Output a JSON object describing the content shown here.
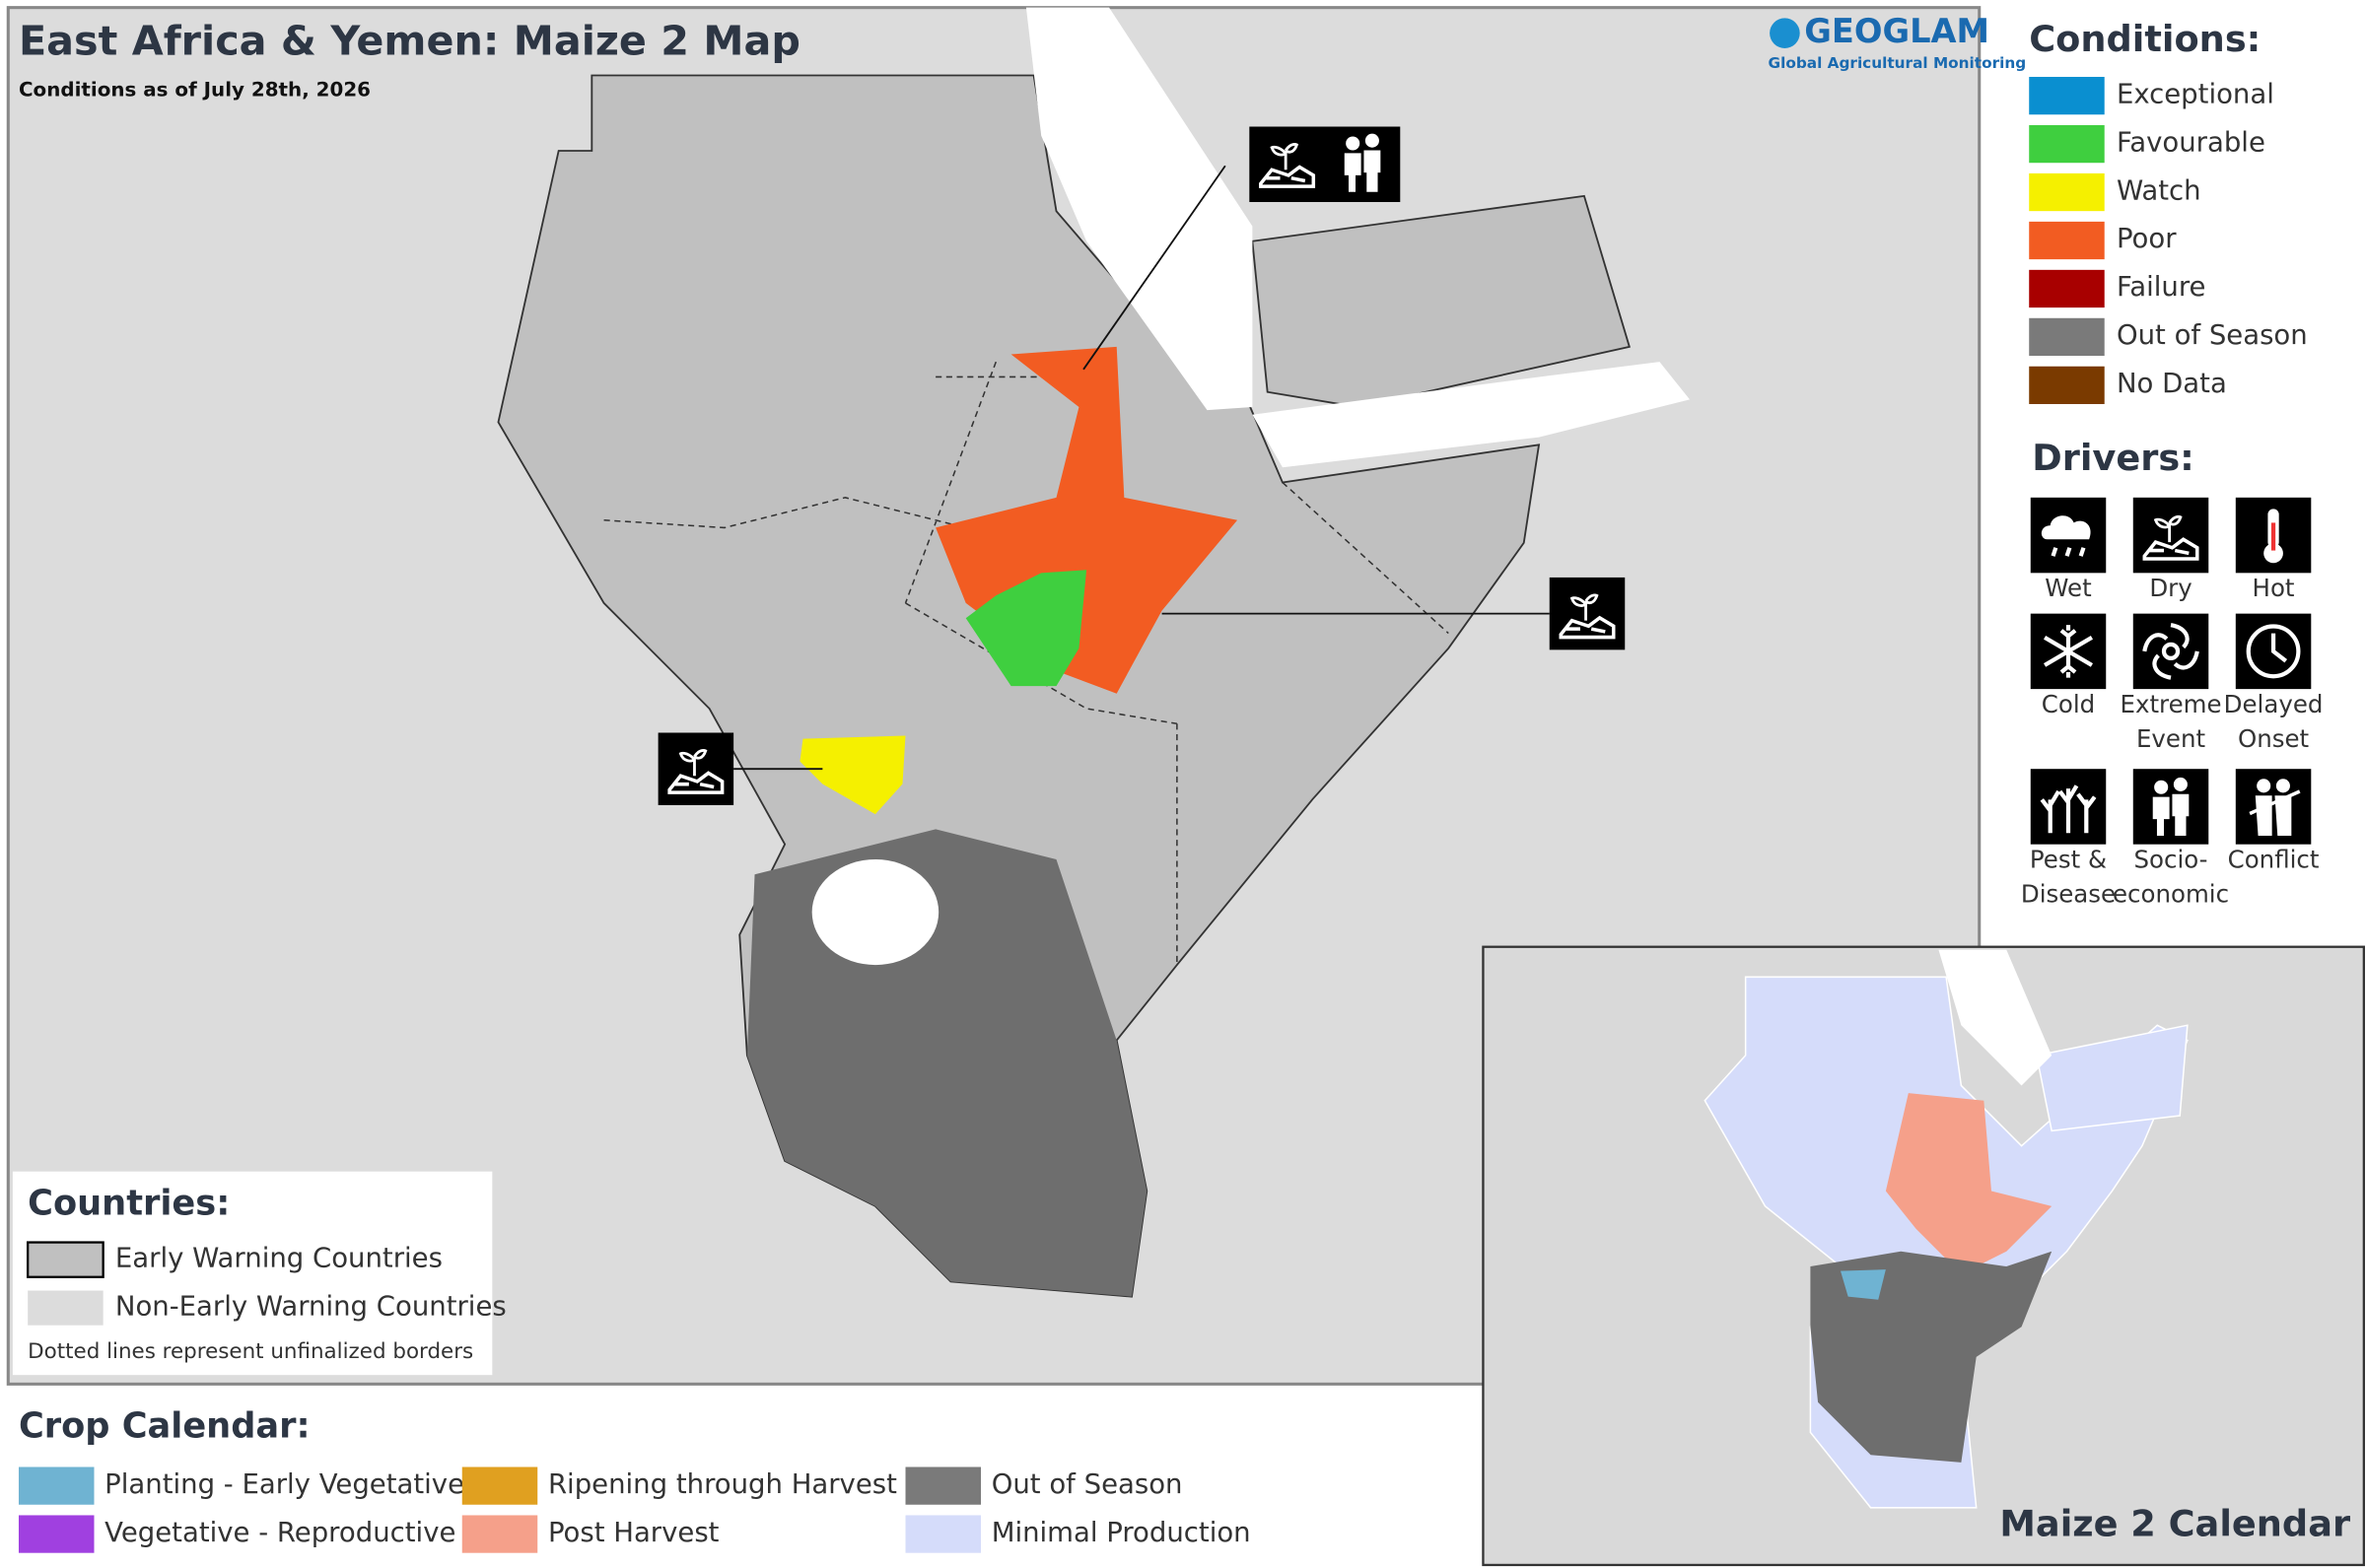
{
  "header": {
    "title": "East Africa & Yemen: Maize 2 Map",
    "subtitle": "Conditions as of July 28th, 2026"
  },
  "logo": {
    "name": "GEOGLAM",
    "tagline": "Global Agricultural Monitoring"
  },
  "conditions": {
    "title": "Conditions:",
    "items": [
      {
        "label": "Exceptional",
        "color": "#0a8fd0"
      },
      {
        "label": "Favourable",
        "color": "#3fcf3f"
      },
      {
        "label": "Watch",
        "color": "#f5f000"
      },
      {
        "label": "Poor",
        "color": "#f25c22"
      },
      {
        "label": "Failure",
        "color": "#a80000"
      },
      {
        "label": "Out of Season",
        "color": "#7a7a7a"
      },
      {
        "label": "No Data",
        "color": "#7a3a00"
      }
    ]
  },
  "drivers": {
    "title": "Drivers:",
    "items": [
      {
        "lines": [
          "Wet"
        ]
      },
      {
        "lines": [
          "Dry"
        ]
      },
      {
        "lines": [
          "Hot"
        ]
      },
      {
        "lines": [
          "Cold"
        ]
      },
      {
        "lines": [
          "Extreme",
          "Event"
        ]
      },
      {
        "lines": [
          "Delayed",
          "Onset"
        ]
      },
      {
        "lines": [
          "Pest &",
          "Disease"
        ]
      },
      {
        "lines": [
          "Socio-",
          "economic"
        ]
      },
      {
        "lines": [
          "Conflict"
        ]
      }
    ]
  },
  "countries": {
    "title": "Countries:",
    "items": [
      {
        "label": "Early Warning Countries",
        "color": "#c0c0c0"
      },
      {
        "label": "Non-Early Warning Countries",
        "color": "#dcdcdc"
      }
    ],
    "note": "Dotted lines represent unfinalized borders"
  },
  "crop_calendar": {
    "title": "Crop Calendar:",
    "items": [
      {
        "label": "Planting - Early Vegetative",
        "color": "#6fb3d2"
      },
      {
        "label": "Vegetative - Reproductive",
        "color": "#a040e0"
      },
      {
        "label": "Ripening through Harvest",
        "color": "#e0a020"
      },
      {
        "label": "Post Harvest",
        "color": "#f5a08a"
      },
      {
        "label": "Out of Season",
        "color": "#7a7a7a"
      },
      {
        "label": "Minimal Production",
        "color": "#d5dcfa"
      }
    ]
  },
  "inset": {
    "title": "Maize 2 Calendar"
  }
}
